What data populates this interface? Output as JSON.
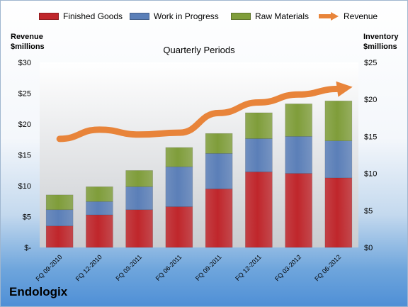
{
  "company_label": "Endologix",
  "legend": {
    "finished_goods": "Finished Goods",
    "work_in_progress": "Work in Progress",
    "raw_materials": "Raw Materials",
    "revenue": "Revenue"
  },
  "left_axis": {
    "line1": "Revenue",
    "line2": "$millions"
  },
  "right_axis": {
    "line1": "Inventory",
    "line2": "$millions"
  },
  "colors": {
    "finished_goods": "#c0262b",
    "work_in_progress": "#5b7fb8",
    "raw_materials": "#7f9d3a",
    "revenue": "#e8843a"
  },
  "chart_data": {
    "type": "bar",
    "title": "Quarterly Periods",
    "categories": [
      "FQ 09-2010",
      "FQ 12-2010",
      "FQ 03-2011",
      "FQ 06-2011",
      "FQ 09-2011",
      "FQ 12-2011",
      "FQ 03-2012",
      "FQ 06-2012"
    ],
    "series": [
      {
        "name": "Finished Goods",
        "axis": "right",
        "stacked": true,
        "values": [
          2.9,
          4.4,
          5.1,
          5.5,
          7.9,
          10.2,
          10.0,
          9.4
        ]
      },
      {
        "name": "Work in Progress",
        "axis": "right",
        "stacked": true,
        "values": [
          2.2,
          1.8,
          3.1,
          5.4,
          4.8,
          4.5,
          5.0,
          5.0
        ]
      },
      {
        "name": "Raw Materials",
        "axis": "right",
        "stacked": true,
        "values": [
          2.0,
          2.0,
          2.2,
          2.6,
          2.7,
          3.5,
          4.4,
          5.4
        ]
      },
      {
        "name": "Revenue",
        "type": "line",
        "axis": "left",
        "values": [
          17.6,
          19.1,
          18.3,
          18.6,
          21.8,
          23.5,
          24.8,
          25.7
        ]
      }
    ],
    "ylim_left": [
      0,
      30
    ],
    "ylim_right": [
      0,
      25
    ],
    "yticks_left": [
      "$-",
      "$5",
      "$10",
      "$15",
      "$20",
      "$25",
      "$30"
    ],
    "yticks_right": [
      "$0",
      "$5",
      "$10",
      "$15",
      "$20",
      "$25"
    ],
    "grid": false,
    "legend": "top"
  }
}
